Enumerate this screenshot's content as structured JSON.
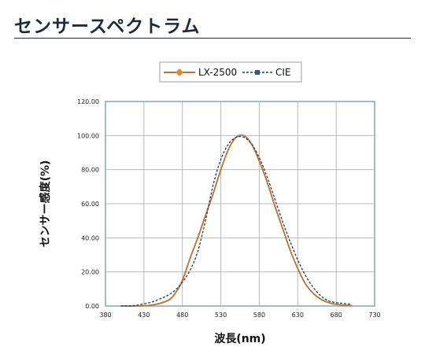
{
  "page": {
    "title": "センサースペクトラム"
  },
  "chart_data": {
    "type": "line",
    "title": "",
    "xlabel": "波長(nm)",
    "ylabel": "センサー感度(%)",
    "xlim": [
      380,
      730
    ],
    "ylim": [
      0,
      120
    ],
    "x_ticks": [
      "380",
      "430",
      "480",
      "530",
      "580",
      "630",
      "680",
      "730"
    ],
    "y_ticks": [
      "0.00",
      "20.00",
      "40.00",
      "60.00",
      "80.00",
      "100.00",
      "120.00"
    ],
    "grid": true,
    "legend_position": "top-center",
    "series": [
      {
        "name": "LX-2500",
        "color": "#c0702a",
        "marker": "diamond",
        "x": [
          400,
          420,
          440,
          460,
          470,
          480,
          490,
          500,
          510,
          520,
          530,
          540,
          550,
          560,
          570,
          580,
          590,
          600,
          610,
          620,
          630,
          640,
          650,
          660,
          670,
          680,
          690,
          700
        ],
        "y": [
          0,
          0,
          0.5,
          3,
          7,
          15,
          28,
          40,
          53,
          66,
          80,
          92,
          99,
          100,
          95,
          85,
          73,
          59,
          46,
          33,
          22,
          13,
          7.5,
          4,
          2,
          1,
          0.5,
          0.3
        ]
      },
      {
        "name": "CIE",
        "color": "#1f3a66",
        "marker": "square",
        "x": [
          400,
          420,
          440,
          450,
          460,
          470,
          480,
          490,
          500,
          510,
          520,
          530,
          540,
          550,
          560,
          570,
          580,
          590,
          600,
          610,
          620,
          630,
          640,
          650,
          660,
          670,
          680,
          690,
          700
        ],
        "y": [
          0,
          0.4,
          2.3,
          4,
          6,
          9,
          14,
          21,
          32,
          50,
          71,
          86,
          95,
          99,
          99,
          95,
          87,
          76,
          63,
          50,
          38,
          27,
          18,
          11,
          6,
          3,
          2,
          1.5,
          1
        ]
      }
    ]
  }
}
